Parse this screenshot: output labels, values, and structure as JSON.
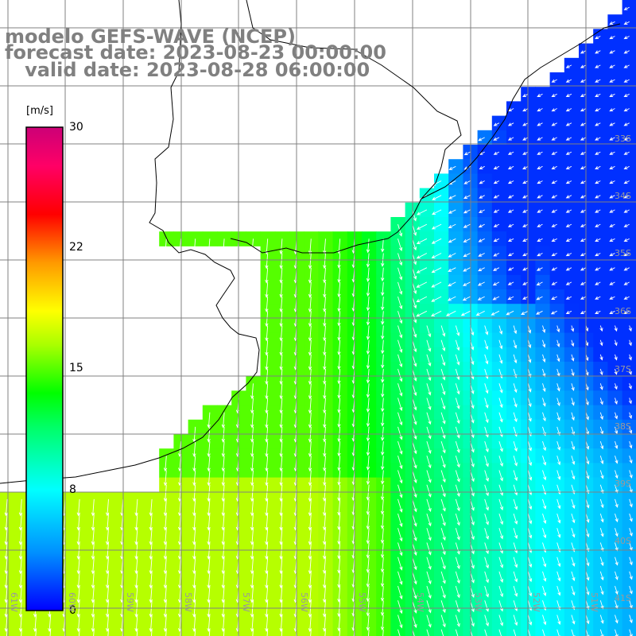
{
  "title": {
    "line1": "modelo GEFS-WAVE (NCEP)",
    "line2": "forecast date: 2023-08-23 00:00:00",
    "line3": "   valid date: 2023-08-28 06:00:00"
  },
  "colorbar": {
    "unit": "[m/s]",
    "ticks": [
      "30",
      "22",
      "15",
      "8",
      "0"
    ],
    "min": 0,
    "max": 30,
    "colors": [
      "#0000ff",
      "#0090ff",
      "#00ffff",
      "#00ff66",
      "#00ff00",
      "#aaff00",
      "#ffff00",
      "#ff9900",
      "#ff0000",
      "#ff0066",
      "#cc0077"
    ]
  },
  "lat_labels": [
    "33S",
    "34S",
    "35S",
    "36S",
    "37S",
    "38S",
    "39S",
    "40S",
    "41S"
  ],
  "lon_labels": [
    "61W",
    "60W",
    "59W",
    "58W",
    "57W",
    "56W",
    "55W",
    "54W",
    "53W",
    "52W",
    "51W"
  ],
  "colors": {
    "coast": "#000000",
    "grid": "#808080",
    "land": "#ffffff",
    "arrow": "#ffffff"
  }
}
